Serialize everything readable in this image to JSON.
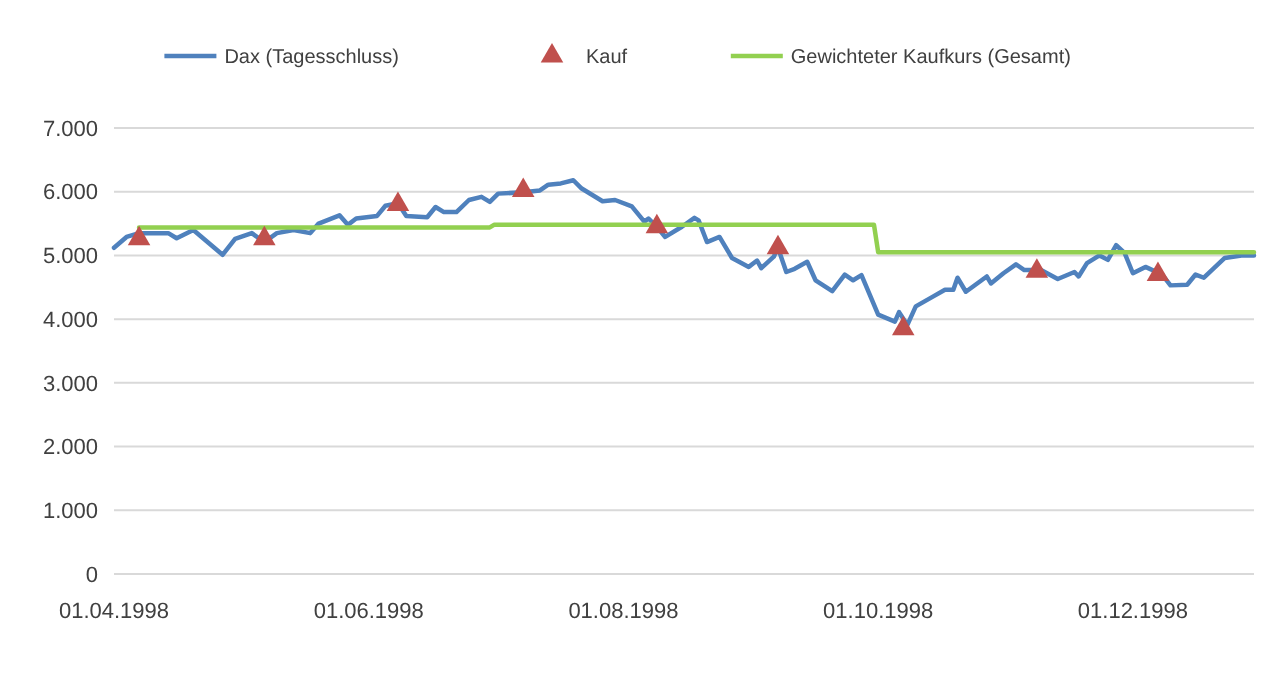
{
  "chart_data": {
    "type": "line",
    "legend": "top",
    "grid": "y",
    "xlim": [
      "1998-04-01",
      "1998-12-30"
    ],
    "xticks": [
      {
        "value": "1998-04-01",
        "label": "01.04.1998"
      },
      {
        "value": "1998-06-01",
        "label": "01.06.1998"
      },
      {
        "value": "1998-08-01",
        "label": "01.08.1998"
      },
      {
        "value": "1998-10-01",
        "label": "01.10.1998"
      },
      {
        "value": "1998-12-01",
        "label": "01.12.1998"
      }
    ],
    "ylim": [
      0,
      7000
    ],
    "yticks": [
      0,
      {
        "value": 1000,
        "label": "1.000"
      },
      {
        "value": 2000,
        "label": "2.000"
      },
      {
        "value": 3000,
        "label": "3.000"
      },
      {
        "value": 4000,
        "label": "4.000"
      },
      {
        "value": 5000,
        "label": "5.000"
      },
      {
        "value": 6000,
        "label": "6.000"
      },
      {
        "value": 7000,
        "label": "7.000"
      }
    ],
    "series": [
      {
        "name": "Dax (Tagesschluss)",
        "color": "#4f81bd",
        "marker": "none",
        "line_style": "solid",
        "x": [
          "1998-04-01",
          "1998-04-04",
          "1998-04-07",
          "1998-04-14",
          "1998-04-16",
          "1998-04-20",
          "1998-04-27",
          "1998-04-30",
          "1998-05-04",
          "1998-05-07",
          "1998-05-10",
          "1998-05-14",
          "1998-05-18",
          "1998-05-20",
          "1998-05-25",
          "1998-05-27",
          "1998-05-29",
          "1998-06-03",
          "1998-06-05",
          "1998-06-08",
          "1998-06-10",
          "1998-06-15",
          "1998-06-17",
          "1998-06-19",
          "1998-06-22",
          "1998-06-25",
          "1998-06-28",
          "1998-06-30",
          "1998-07-02",
          "1998-07-08",
          "1998-07-12",
          "1998-07-14",
          "1998-07-17",
          "1998-07-20",
          "1998-07-22",
          "1998-07-27",
          "1998-07-30",
          "1998-08-03",
          "1998-08-06",
          "1998-08-07",
          "1998-08-09",
          "1998-08-11",
          "1998-08-15",
          "1998-08-18",
          "1998-08-19",
          "1998-08-21",
          "1998-08-24",
          "1998-08-27",
          "1998-08-31",
          "1998-09-02",
          "1998-09-03",
          "1998-09-06",
          "1998-09-07",
          "1998-09-09",
          "1998-09-11",
          "1998-09-14",
          "1998-09-16",
          "1998-09-20",
          "1998-09-23",
          "1998-09-25",
          "1998-09-27",
          "1998-10-01",
          "1998-10-05",
          "1998-10-06",
          "1998-10-08",
          "1998-10-10",
          "1998-10-14",
          "1998-10-17",
          "1998-10-19",
          "1998-10-20",
          "1998-10-22",
          "1998-10-27",
          "1998-10-28",
          "1998-10-31",
          "1998-11-03",
          "1998-11-05",
          "1998-11-09",
          "1998-11-13",
          "1998-11-17",
          "1998-11-18",
          "1998-11-20",
          "1998-11-23",
          "1998-11-25",
          "1998-11-27",
          "1998-11-29",
          "1998-12-01",
          "1998-12-04",
          "1998-12-08",
          "1998-12-10",
          "1998-12-14",
          "1998-12-16",
          "1998-12-18",
          "1998-12-23",
          "1998-12-27",
          "1998-12-30"
        ],
        "values": [
          5120,
          5290,
          5350,
          5350,
          5270,
          5400,
          5010,
          5260,
          5350,
          5210,
          5350,
          5400,
          5350,
          5500,
          5630,
          5480,
          5580,
          5620,
          5780,
          5820,
          5620,
          5600,
          5760,
          5680,
          5680,
          5870,
          5920,
          5840,
          5970,
          5990,
          6020,
          6110,
          6130,
          6180,
          6050,
          5850,
          5870,
          5770,
          5530,
          5580,
          5450,
          5290,
          5450,
          5590,
          5550,
          5210,
          5290,
          4960,
          4820,
          4920,
          4800,
          4980,
          5120,
          4740,
          4790,
          4900,
          4610,
          4440,
          4700,
          4610,
          4690,
          4070,
          3960,
          4110,
          3910,
          4200,
          4350,
          4460,
          4460,
          4650,
          4430,
          4670,
          4560,
          4720,
          4860,
          4770,
          4770,
          4630,
          4740,
          4670,
          4880,
          5000,
          4930,
          5160,
          5040,
          4720,
          4820,
          4700,
          4530,
          4540,
          4700,
          4650,
          4960,
          5000,
          5000
        ]
      },
      {
        "name": "Kauf",
        "type": "scatter",
        "color": "#c0504d",
        "marker": "triangle",
        "x": [
          "1998-04-07",
          "1998-05-07",
          "1998-06-08",
          "1998-07-08",
          "1998-08-09",
          "1998-09-07",
          "1998-10-07",
          "1998-11-08",
          "1998-12-07"
        ],
        "values": [
          5260,
          5260,
          5800,
          6020,
          5450,
          5120,
          3850,
          4750,
          4700
        ]
      },
      {
        "name": "Gewichteter Kaufkurs (Gesamt)",
        "color": "#92d050",
        "marker": "none",
        "line_style": "solid",
        "x": [
          "1998-04-07",
          "1998-06-30",
          "1998-07-01",
          "1998-09-30",
          "1998-10-01",
          "1998-12-30"
        ],
        "values": [
          5440,
          5440,
          5480,
          5480,
          5050,
          5050
        ]
      }
    ]
  }
}
